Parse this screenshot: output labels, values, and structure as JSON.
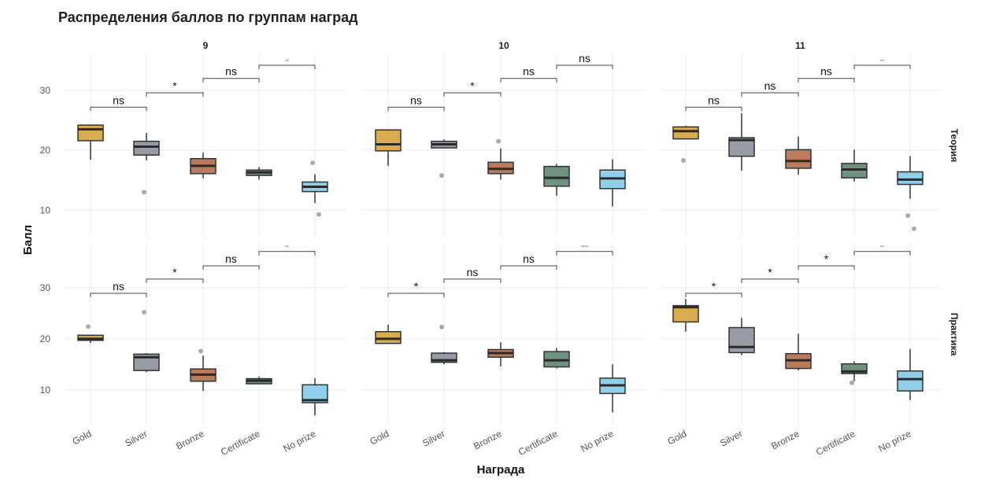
{
  "chart_data": {
    "type": "box",
    "title": "Распределения баллов по группам наград",
    "xlabel": "Награда",
    "ylabel": "Балл",
    "categories": [
      "Gold",
      "Silver",
      "Bronze",
      "Certificate",
      "No prize"
    ],
    "colors": {
      "Gold": "#d8ab4f",
      "Silver": "#979ba6",
      "Bronze": "#b97b5b",
      "Certificate": "#6f917f",
      "No prize": "#8fcfea"
    },
    "columns": [
      "9",
      "10",
      "11"
    ],
    "rows": [
      {
        "name": "Теория",
        "ylim": [
          5.7,
          35.9
        ],
        "yticks": [
          10,
          20,
          30
        ],
        "bracket_levels": [
          27.2,
          29.6,
          32.0,
          34.2
        ]
      },
      {
        "name": "Практика",
        "ylim": [
          3.2,
          38.6
        ],
        "yticks": [
          10,
          20,
          30
        ],
        "bracket_levels": [
          28.9,
          31.7,
          34.3,
          37.1
        ]
      }
    ],
    "grid": true,
    "panels": [
      {
        "column": "9",
        "row": "Теория",
        "significance": [
          "ns",
          "*",
          "ns",
          "**"
        ],
        "boxes": [
          {
            "low": 18.4,
            "q1": 21.6,
            "median": 23.5,
            "q3": 24.2,
            "high": 24.3,
            "outliers": []
          },
          {
            "low": 18.3,
            "q1": 19.2,
            "median": 20.6,
            "q3": 21.5,
            "high": 22.9,
            "outliers": [
              13.0
            ]
          },
          {
            "low": 15.3,
            "q1": 16.1,
            "median": 17.4,
            "q3": 18.6,
            "high": 19.6,
            "outliers": []
          },
          {
            "low": 15.1,
            "q1": 15.8,
            "median": 16.3,
            "q3": 16.7,
            "high": 17.2,
            "outliers": []
          },
          {
            "low": 11.2,
            "q1": 13.1,
            "median": 13.9,
            "q3": 14.7,
            "high": 16.0,
            "outliers": [
              17.9,
              9.3
            ]
          }
        ]
      },
      {
        "column": "10",
        "row": "Теория",
        "significance": [
          "ns",
          "*",
          "ns",
          "ns"
        ],
        "boxes": [
          {
            "low": 17.4,
            "q1": 19.9,
            "median": 21.0,
            "q3": 23.4,
            "high": 23.4,
            "outliers": []
          },
          {
            "low": 20.3,
            "q1": 20.4,
            "median": 21.0,
            "q3": 21.5,
            "high": 21.8,
            "outliers": [
              15.8
            ]
          },
          {
            "low": 15.1,
            "q1": 16.1,
            "median": 16.9,
            "q3": 18.0,
            "high": 20.3,
            "outliers": [
              21.5
            ]
          },
          {
            "low": 12.4,
            "q1": 14.0,
            "median": 15.4,
            "q3": 17.3,
            "high": 17.7,
            "outliers": []
          },
          {
            "low": 10.6,
            "q1": 13.6,
            "median": 15.3,
            "q3": 16.7,
            "high": 18.5,
            "outliers": []
          }
        ]
      },
      {
        "column": "11",
        "row": "Теория",
        "significance": [
          "ns",
          "ns",
          "ns",
          "**"
        ],
        "boxes": [
          {
            "low": 21.9,
            "q1": 21.9,
            "median": 23.2,
            "q3": 23.9,
            "high": 24.1,
            "outliers": [
              18.3
            ]
          },
          {
            "low": 16.6,
            "q1": 19.0,
            "median": 21.7,
            "q3": 22.1,
            "high": 26.2,
            "outliers": []
          },
          {
            "low": 15.9,
            "q1": 17.0,
            "median": 18.2,
            "q3": 20.1,
            "high": 22.3,
            "outliers": []
          },
          {
            "low": 14.8,
            "q1": 15.4,
            "median": 16.8,
            "q3": 17.8,
            "high": 20.1,
            "outliers": []
          },
          {
            "low": 11.9,
            "q1": 14.3,
            "median": 15.1,
            "q3": 16.4,
            "high": 19.0,
            "outliers": [
              9.1,
              6.9
            ]
          }
        ]
      },
      {
        "column": "9",
        "row": "Практика",
        "significance": [
          "ns",
          "*",
          "ns",
          "**"
        ],
        "boxes": [
          {
            "low": 19.2,
            "q1": 19.7,
            "median": 20.0,
            "q3": 20.7,
            "high": 20.7,
            "outliers": [
              22.4
            ]
          },
          {
            "low": 13.5,
            "q1": 13.8,
            "median": 16.4,
            "q3": 17.0,
            "high": 17.2,
            "outliers": [
              25.2
            ]
          },
          {
            "low": 9.8,
            "q1": 11.7,
            "median": 13.0,
            "q3": 14.1,
            "high": 16.7,
            "outliers": [
              17.6
            ]
          },
          {
            "low": 11.2,
            "q1": 11.2,
            "median": 11.8,
            "q3": 12.2,
            "high": 12.6,
            "outliers": []
          },
          {
            "low": 5.0,
            "q1": 7.5,
            "median": 8.0,
            "q3": 11.0,
            "high": 12.3,
            "outliers": []
          }
        ]
      },
      {
        "column": "10",
        "row": "Практика",
        "significance": [
          "*",
          "ns",
          "ns",
          "****"
        ],
        "boxes": [
          {
            "low": 19.1,
            "q1": 19.1,
            "median": 20.0,
            "q3": 21.4,
            "high": 22.8,
            "outliers": []
          },
          {
            "low": 15.0,
            "q1": 15.4,
            "median": 15.8,
            "q3": 17.2,
            "high": 17.4,
            "outliers": [
              22.3
            ]
          },
          {
            "low": 14.6,
            "q1": 16.4,
            "median": 17.2,
            "q3": 17.9,
            "high": 19.3,
            "outliers": []
          },
          {
            "low": 14.2,
            "q1": 14.5,
            "median": 15.8,
            "q3": 17.5,
            "high": 18.2,
            "outliers": []
          },
          {
            "low": 5.6,
            "q1": 9.3,
            "median": 10.9,
            "q3": 12.3,
            "high": 15.0,
            "outliers": []
          }
        ]
      },
      {
        "column": "11",
        "row": "Практика",
        "significance": [
          "*",
          "*",
          "*",
          "**"
        ],
        "boxes": [
          {
            "low": 21.4,
            "q1": 23.3,
            "median": 26.2,
            "q3": 26.5,
            "high": 27.8,
            "outliers": []
          },
          {
            "low": 16.8,
            "q1": 17.3,
            "median": 18.4,
            "q3": 22.2,
            "high": 24.1,
            "outliers": []
          },
          {
            "low": 13.8,
            "q1": 14.2,
            "median": 15.8,
            "q3": 17.1,
            "high": 21.0,
            "outliers": []
          },
          {
            "low": 11.7,
            "q1": 13.2,
            "median": 13.6,
            "q3": 15.1,
            "high": 15.6,
            "outliers": [
              11.4
            ]
          },
          {
            "low": 8.0,
            "q1": 9.8,
            "median": 12.1,
            "q3": 13.7,
            "high": 18.0,
            "outliers": []
          }
        ]
      }
    ]
  }
}
